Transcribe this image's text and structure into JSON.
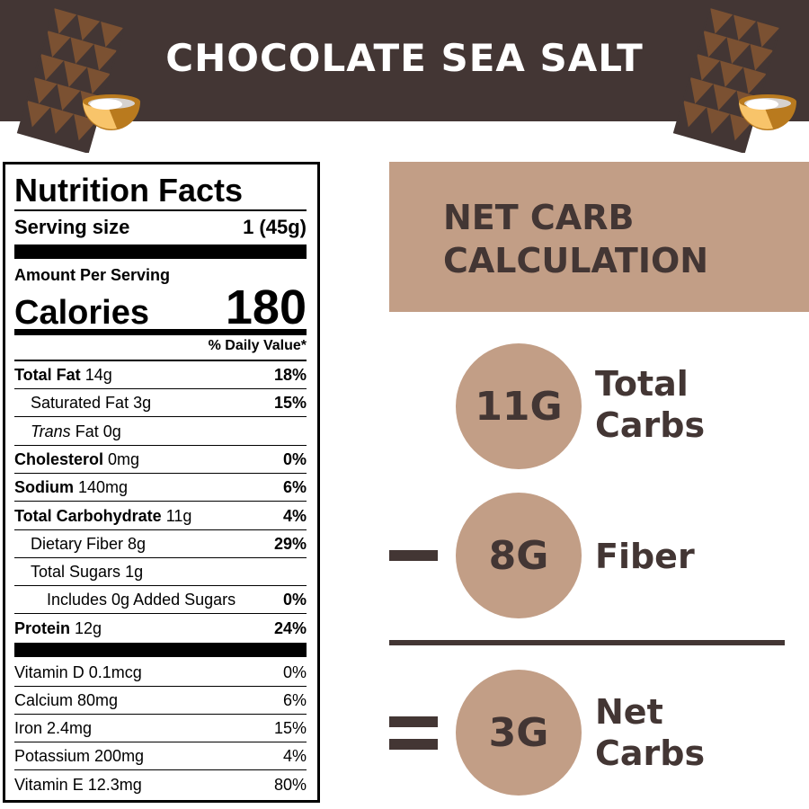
{
  "title": "CHOCOLATE SEA SALT",
  "colors": {
    "header": "#433634",
    "accent": "#c29e86",
    "chocolate": "#7b5132",
    "bowl": "#f8c46a"
  },
  "label": {
    "heading": "Nutrition Facts",
    "serving_label": "Serving size",
    "serving_value": "1 (45g)",
    "amount_per_serving": "Amount Per Serving",
    "calories_label": "Calories",
    "calories_value": "180",
    "dv_header": "% Daily Value*",
    "nutrients": [
      {
        "name": "Total Fat",
        "amount": "14g",
        "dv": "18%",
        "bold": true,
        "indent": 0
      },
      {
        "name": "Saturated Fat",
        "amount": "3g",
        "dv": "15%",
        "bold": false,
        "indent": 1
      },
      {
        "name": "Trans",
        "name_suffix": "Fat",
        "amount": "0g",
        "dv": "",
        "bold": false,
        "indent": 1,
        "italic": true
      },
      {
        "name": "Cholesterol",
        "amount": "0mg",
        "dv": "0%",
        "bold": true,
        "indent": 0
      },
      {
        "name": "Sodium",
        "amount": "140mg",
        "dv": "6%",
        "bold": true,
        "indent": 0
      },
      {
        "name": "Total Carbohydrate",
        "amount": "11g",
        "dv": "4%",
        "bold": true,
        "indent": 0
      },
      {
        "name": "Dietary Fiber",
        "amount": "8g",
        "dv": "29%",
        "bold": false,
        "indent": 1
      },
      {
        "name": "Total Sugars",
        "amount": "1g",
        "dv": "",
        "bold": false,
        "indent": 1
      },
      {
        "name": "Includes 0g Added Sugars",
        "amount": "",
        "dv": "0%",
        "bold": false,
        "indent": 2
      },
      {
        "name": "Protein",
        "amount": "12g",
        "dv": "24%",
        "bold": true,
        "indent": 0
      }
    ],
    "vitamins": [
      {
        "name": "Vitamin D 0.1mcg",
        "dv": "0%"
      },
      {
        "name": "Calcium 80mg",
        "dv": "6%"
      },
      {
        "name": "Iron 2.4mg",
        "dv": "15%"
      },
      {
        "name": "Potassium 200mg",
        "dv": "4%"
      },
      {
        "name": "Vitamin E 12.3mg",
        "dv": "80%"
      }
    ]
  },
  "net_carb": {
    "title_line1": "NET CARB",
    "title_line2": "CALCULATION",
    "total": {
      "value": "11G",
      "line1": "Total",
      "line2": "Carbs"
    },
    "fiber": {
      "value": "8G",
      "line1": "Fiber"
    },
    "net": {
      "value": "3G",
      "line1": "Net",
      "line2": "Carbs"
    }
  }
}
